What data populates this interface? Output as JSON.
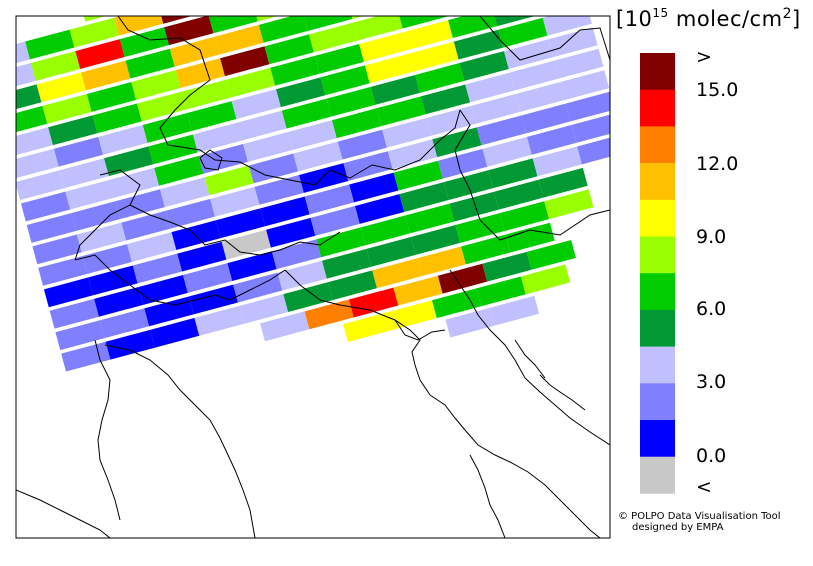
{
  "legend": {
    "title_prefix": "[10",
    "title_exponent": "15",
    "title_unit": " molec/cm",
    "title_unit_exponent": "2",
    "title_suffix": "]",
    "bins": [
      {
        "label_above": ">",
        "color": "#800000"
      },
      {
        "label_above": "15.0",
        "color": "#ff0000"
      },
      {
        "color": "#ff8000"
      },
      {
        "label_above": "12.0",
        "color": "#ffc000"
      },
      {
        "color": "#ffff00"
      },
      {
        "label_above": "9.0",
        "color": "#99ff00"
      },
      {
        "color": "#00cc00"
      },
      {
        "label_above": "6.0",
        "color": "#009933"
      },
      {
        "color": "#c0c0ff"
      },
      {
        "label_above": "3.0",
        "color": "#8080ff"
      },
      {
        "color": "#0000ff"
      },
      {
        "label_above": "0.0",
        "color": "#c8c8c8"
      }
    ],
    "bottom_label": "<",
    "ticks": [
      ">",
      "15.0",
      "12.0",
      "9.0",
      "6.0",
      "3.0",
      "0.0",
      "<"
    ]
  },
  "credit": {
    "line1": "© POLPO Data Visualisation Tool",
    "line2": "designed by EMPA"
  },
  "colors": {
    "dark_red": "#800000",
    "red": "#ff0000",
    "orange": "#ff8000",
    "amber": "#ffc000",
    "yellow": "#ffff00",
    "lime": "#99ff00",
    "green": "#00cc00",
    "dark_green": "#009933",
    "light_lavender": "#c0c0ff",
    "lavender": "#8080ff",
    "blue": "#0000ff",
    "grey": "#c8c8c8"
  }
}
